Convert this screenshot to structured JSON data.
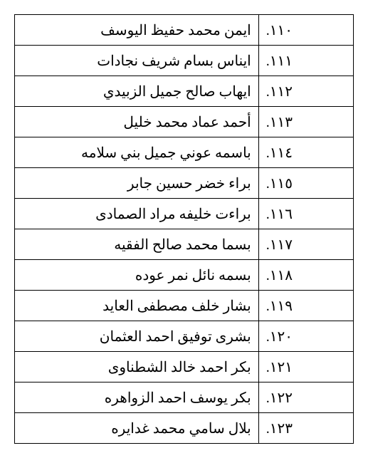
{
  "table": {
    "rows": [
      {
        "num": ".١١٠",
        "name": "ايمن محمد حفيظ اليوسف"
      },
      {
        "num": ".١١١",
        "name": "ايناس بسام شريف نجادات"
      },
      {
        "num": ".١١٢",
        "name": "ايهاب صالح جميل الزبيدي"
      },
      {
        "num": ".١١٣",
        "name": "أحمد عماد محمد خليل"
      },
      {
        "num": ".١١٤",
        "name": "باسمه عوني جميل بني سلامه"
      },
      {
        "num": ".١١٥",
        "name": "براء خضر حسين جابر"
      },
      {
        "num": ".١١٦",
        "name": "براءت خليفه مراد الصمادى"
      },
      {
        "num": ".١١٧",
        "name": "بسما محمد صالح الفقيه"
      },
      {
        "num": ".١١٨",
        "name": "بسمه نائل نمر عوده"
      },
      {
        "num": ".١١٩",
        "name": "بشار خلف مصطفى العايد"
      },
      {
        "num": ".١٢٠",
        "name": "بشرى توفيق احمد العثمان"
      },
      {
        "num": ".١٢١",
        "name": "بكر احمد خالد الشطناوى"
      },
      {
        "num": ".١٢٢",
        "name": "بكر يوسف احمد الزواهره"
      },
      {
        "num": ".١٢٣",
        "name": "بلال سامي محمد غدايره"
      }
    ]
  }
}
